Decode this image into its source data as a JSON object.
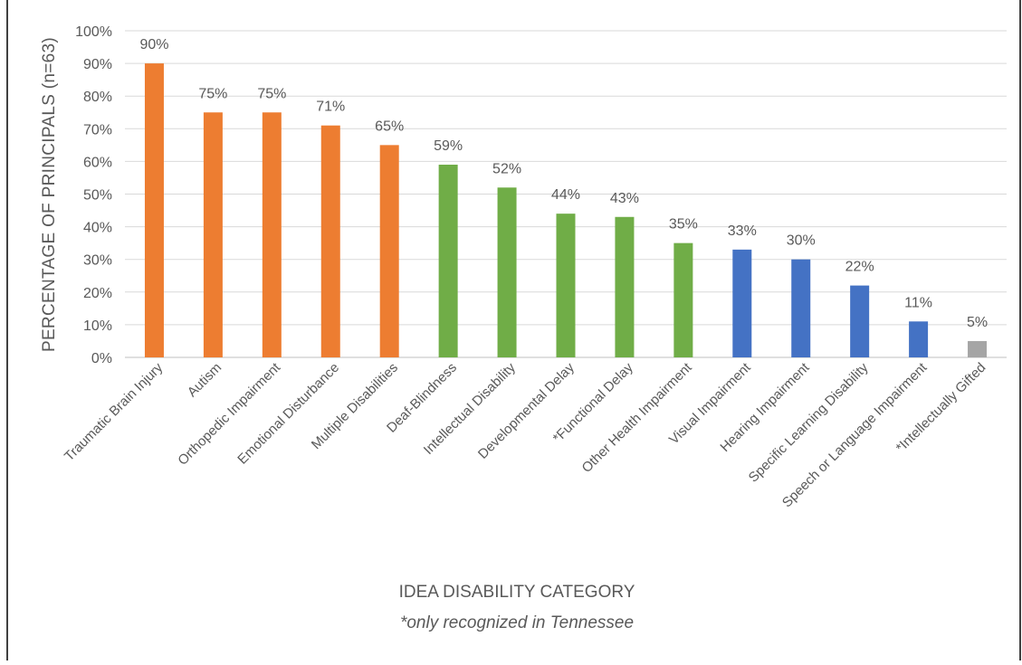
{
  "chart_data": {
    "type": "bar",
    "title": "",
    "xlabel": "IDEA DISABILITY CATEGORY",
    "xlabel_note": "*only recognized in Tennessee",
    "ylabel": "PERCENTAGE OF PRINCIPALS (n=63)",
    "ylim": [
      0,
      100
    ],
    "y_ticks": [
      "0%",
      "10%",
      "20%",
      "30%",
      "40%",
      "50%",
      "60%",
      "70%",
      "80%",
      "90%",
      "100%"
    ],
    "grid": true,
    "legend": "none",
    "categories": [
      "Traumatic Brain Injury",
      "Autism",
      "Orthopedic Impairment",
      "Emotional Disturbance",
      "Multiple Disabilities",
      "Deaf-Blindness",
      "Intellectual Disability",
      "Developmental Delay",
      "*Functional Delay",
      "Other Health Impairment",
      "Visual Impairment",
      "Hearing Impairment",
      "Specific Learning Disability",
      "Speech or Language Impairment",
      "*Intellectually Gifted"
    ],
    "values": [
      90,
      75,
      75,
      71,
      65,
      59,
      52,
      44,
      43,
      35,
      33,
      30,
      22,
      11,
      5
    ],
    "data_labels": [
      "90%",
      "75%",
      "75%",
      "71%",
      "65%",
      "59%",
      "52%",
      "44%",
      "43%",
      "35%",
      "33%",
      "30%",
      "22%",
      "11%",
      "5%"
    ],
    "bar_colors": [
      "#ED7D31",
      "#ED7D31",
      "#ED7D31",
      "#ED7D31",
      "#ED7D31",
      "#70AD47",
      "#70AD47",
      "#70AD47",
      "#70AD47",
      "#70AD47",
      "#4472C4",
      "#4472C4",
      "#4472C4",
      "#4472C4",
      "#A5A5A5"
    ]
  },
  "colors": {
    "gridline": "#D9D9D9",
    "text": "#595959",
    "frame": "#000000"
  }
}
